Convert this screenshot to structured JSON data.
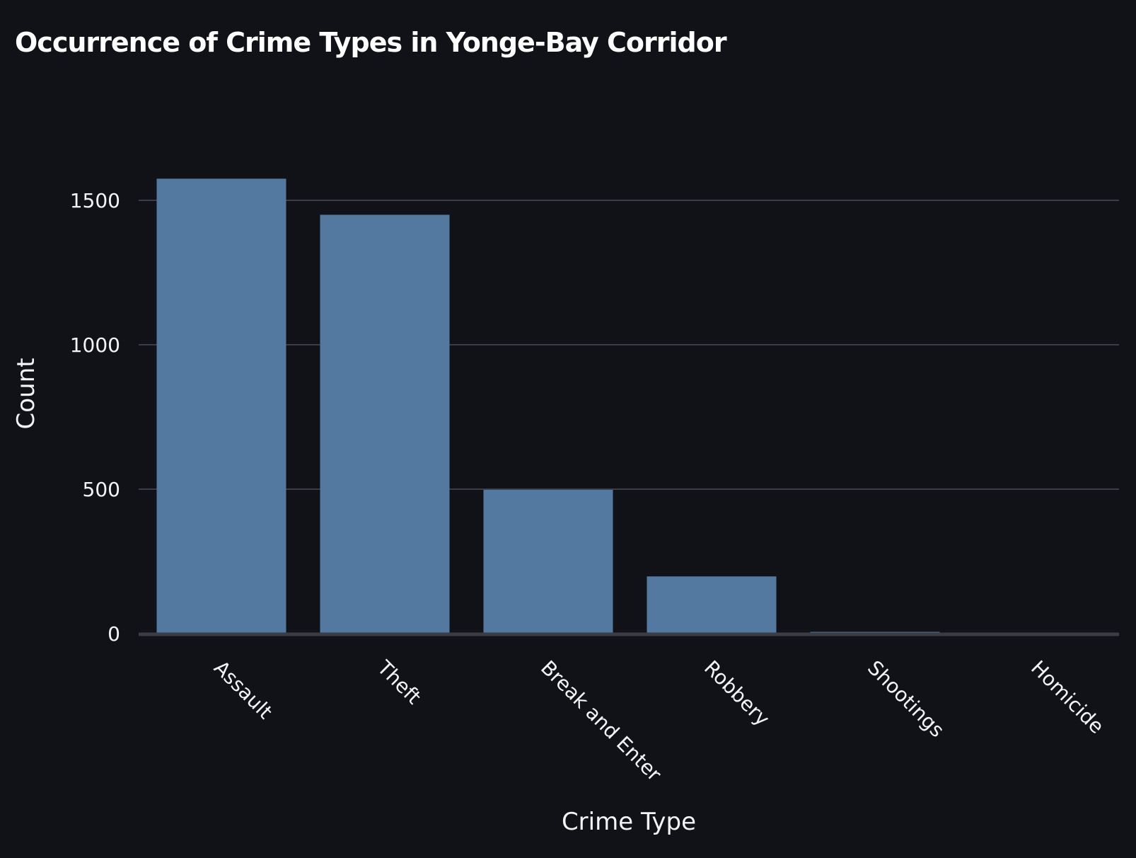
{
  "chart_data": {
    "type": "bar",
    "title": "Occurrence of Crime Types in Yonge-Bay Corridor",
    "xlabel": "Crime Type",
    "ylabel": "Count",
    "categories": [
      "Assault",
      "Theft",
      "Break and Enter",
      "Robbery",
      "Shootings",
      "Homicide"
    ],
    "values": [
      1575,
      1450,
      498,
      198,
      6,
      2
    ],
    "ylim": [
      0,
      1650
    ],
    "yticks": [
      0,
      500,
      1000,
      1500
    ],
    "grid": true,
    "legend": "none",
    "colors": {
      "background": "#111217",
      "bar": "#5479a0",
      "grid": "#3a3c46",
      "baseline": "#3a3c46",
      "text": "#f4f4f6"
    }
  }
}
